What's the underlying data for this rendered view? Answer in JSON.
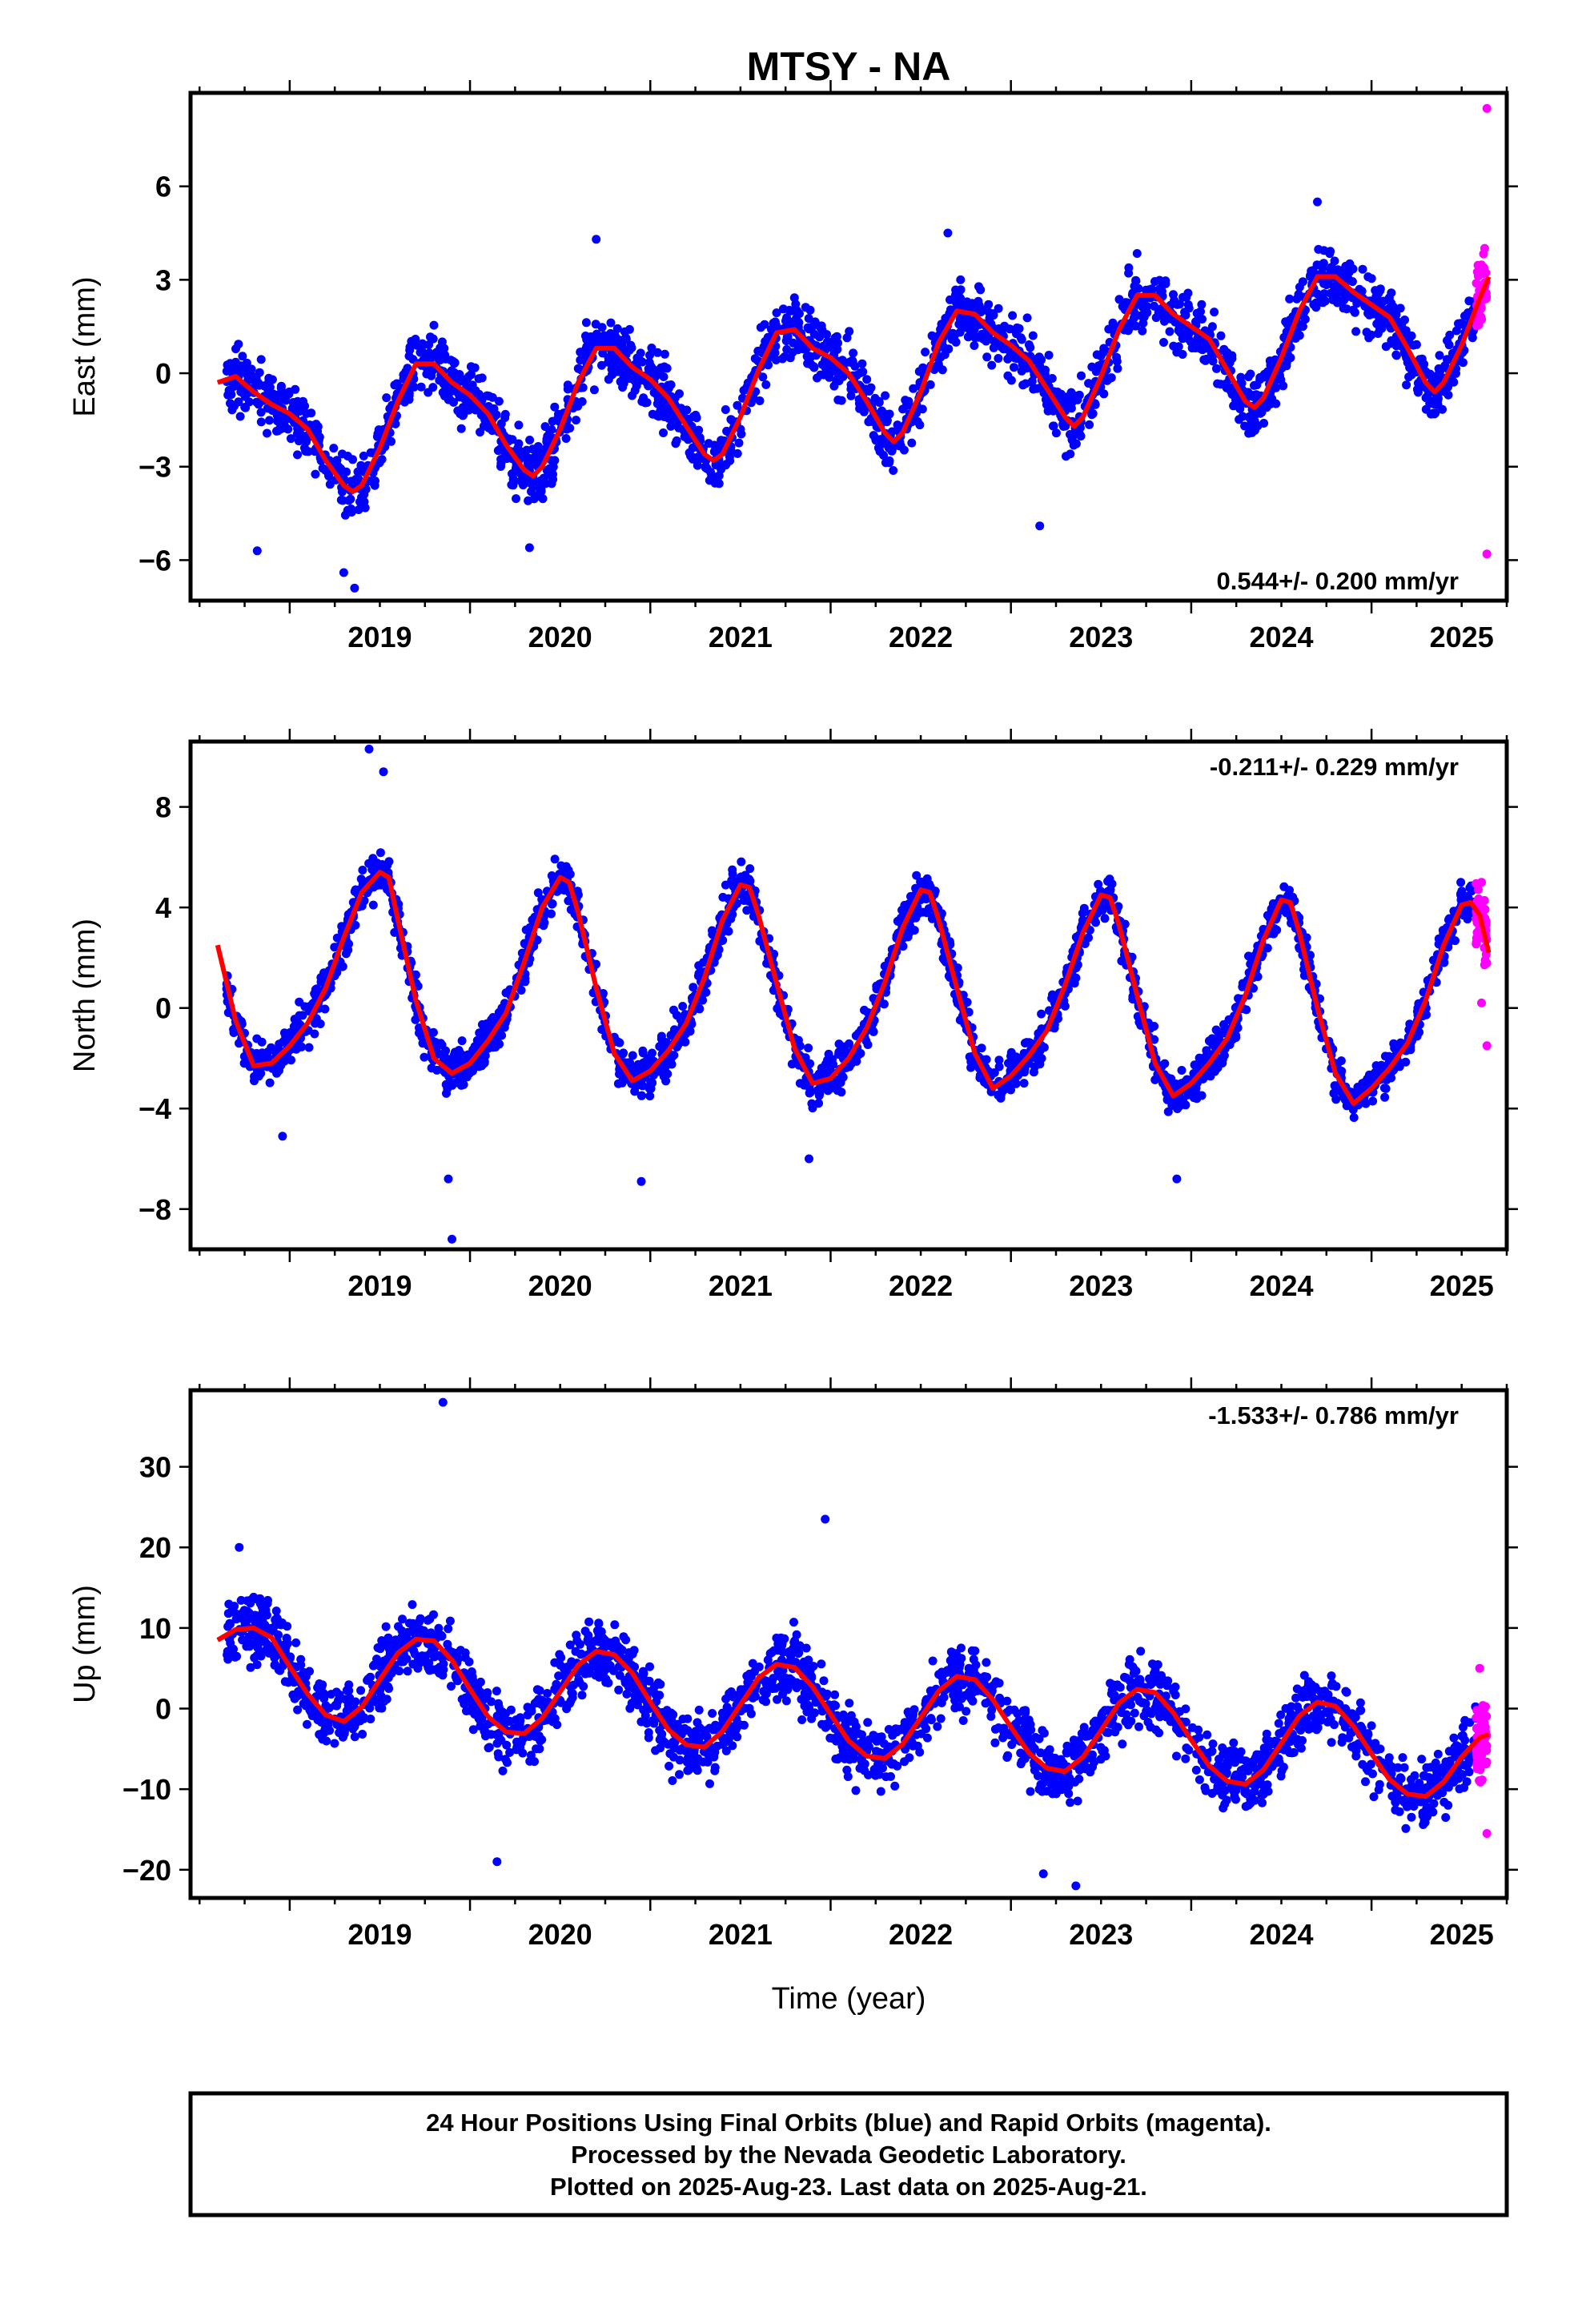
{
  "title": "MTSY - NA",
  "xlabel": "Time (year)",
  "colors": {
    "final": "#0000ff",
    "rapid": "#ff00ff",
    "model": "#ff0000"
  },
  "footer": {
    "line1": "24 Hour Positions Using Final Orbits (blue) and Rapid Orbits (magenta).",
    "line2": "Processed by the Nevada Geodetic Laboratory.",
    "line3": "Plotted on 2025-Aug-23. Last data on 2025-Aug-21."
  },
  "chart_data": [
    {
      "type": "scatter",
      "component": "east",
      "ylabel": "East (mm)",
      "rate_label": "0.544+/- 0.200 mm/yr",
      "rate_position": "bottom-right",
      "xlim": [
        2018.45,
        2025.75
      ],
      "ylim": [
        -7.3,
        9.0
      ],
      "x_ticks": [
        2019,
        2020,
        2021,
        2022,
        2023,
        2024,
        2025
      ],
      "x_tick_labels": [
        "2019",
        "2020",
        "2021",
        "2022",
        "2023",
        "2024",
        "2025"
      ],
      "y_ticks": [
        -6,
        -3,
        0,
        3,
        6
      ],
      "y_tick_labels": [
        "−6",
        "−3",
        "0",
        "3",
        "6"
      ],
      "model_curve": {
        "x": [
          2018.6,
          2018.7,
          2018.8,
          2018.9,
          2019.0,
          2019.1,
          2019.2,
          2019.3,
          2019.35,
          2019.4,
          2019.5,
          2019.6,
          2019.7,
          2019.8,
          2019.9,
          2020.0,
          2020.1,
          2020.2,
          2020.3,
          2020.35,
          2020.4,
          2020.5,
          2020.6,
          2020.7,
          2020.8,
          2020.9,
          2021.0,
          2021.1,
          2021.2,
          2021.3,
          2021.35,
          2021.4,
          2021.5,
          2021.6,
          2021.7,
          2021.8,
          2021.9,
          2022.0,
          2022.1,
          2022.2,
          2022.3,
          2022.35,
          2022.4,
          2022.5,
          2022.6,
          2022.7,
          2022.8,
          2022.9,
          2023.0,
          2023.1,
          2023.2,
          2023.3,
          2023.35,
          2023.4,
          2023.5,
          2023.6,
          2023.7,
          2023.8,
          2023.9,
          2024.0,
          2024.1,
          2024.2,
          2024.3,
          2024.35,
          2024.4,
          2024.5,
          2024.6,
          2024.7,
          2024.8,
          2024.9,
          2025.0,
          2025.1,
          2025.2,
          2025.3,
          2025.35,
          2025.4,
          2025.5,
          2025.6,
          2025.65
        ],
        "y": [
          -0.3,
          -0.1,
          -0.6,
          -1.0,
          -1.3,
          -1.8,
          -2.8,
          -3.6,
          -3.8,
          -3.6,
          -2.4,
          -0.9,
          0.3,
          0.3,
          -0.3,
          -0.7,
          -1.3,
          -2.3,
          -3.1,
          -3.3,
          -3.0,
          -1.8,
          -0.3,
          0.8,
          0.8,
          0.2,
          -0.2,
          -0.8,
          -1.7,
          -2.6,
          -2.8,
          -2.6,
          -1.4,
          0.1,
          1.3,
          1.4,
          0.8,
          0.5,
          0.0,
          -0.9,
          -1.9,
          -2.2,
          -1.9,
          -0.6,
          1.0,
          2.0,
          1.9,
          1.3,
          0.9,
          0.4,
          -0.5,
          -1.4,
          -1.7,
          -1.4,
          -0.1,
          1.4,
          2.5,
          2.5,
          1.9,
          1.5,
          1.1,
          0.1,
          -0.9,
          -1.1,
          -0.8,
          0.5,
          2.0,
          3.1,
          3.1,
          2.6,
          2.2,
          1.8,
          0.8,
          -0.3,
          -0.6,
          -0.3,
          0.9,
          2.4,
          3.1
        ]
      },
      "series": [
        {
          "name": "Final Orbits (blue)",
          "color": "#0000ff",
          "x_range": [
            2018.65,
            2025.58
          ],
          "point_count": 2300,
          "scatter_mm": 0.9,
          "outliers": [
            {
              "x": 2019.3,
              "y": -6.4
            },
            {
              "x": 2019.36,
              "y": -6.9
            },
            {
              "x": 2018.82,
              "y": -5.7
            },
            {
              "x": 2020.33,
              "y": -5.6
            },
            {
              "x": 2020.7,
              "y": 4.3
            },
            {
              "x": 2022.65,
              "y": 4.5
            },
            {
              "x": 2023.16,
              "y": -4.9
            },
            {
              "x": 2024.7,
              "y": 5.5
            }
          ]
        },
        {
          "name": "Rapid Orbits (magenta)",
          "color": "#ff00ff",
          "x_range": [
            2025.58,
            2025.64
          ],
          "point_count": 60,
          "scatter_mm": 1.0,
          "outliers": [
            {
              "x": 2025.64,
              "y": 8.5
            },
            {
              "x": 2025.64,
              "y": -5.8
            }
          ]
        }
      ]
    },
    {
      "type": "scatter",
      "component": "north",
      "ylabel": "North (mm)",
      "rate_label": "-0.211+/- 0.229 mm/yr",
      "rate_position": "top-right",
      "xlim": [
        2018.45,
        2025.75
      ],
      "ylim": [
        -9.6,
        10.6
      ],
      "x_ticks": [
        2019,
        2020,
        2021,
        2022,
        2023,
        2024,
        2025
      ],
      "x_tick_labels": [
        "2019",
        "2020",
        "2021",
        "2022",
        "2023",
        "2024",
        "2025"
      ],
      "y_ticks": [
        -8,
        -4,
        0,
        4,
        8
      ],
      "y_tick_labels": [
        "−8",
        "−4",
        "0",
        "4",
        "8"
      ],
      "model_curve": {
        "x": [
          2018.6,
          2018.7,
          2018.8,
          2018.9,
          2019.0,
          2019.1,
          2019.2,
          2019.3,
          2019.4,
          2019.5,
          2019.55,
          2019.6,
          2019.7,
          2019.8,
          2019.9,
          2020.0,
          2020.1,
          2020.2,
          2020.3,
          2020.4,
          2020.5,
          2020.55,
          2020.6,
          2020.7,
          2020.8,
          2020.9,
          2021.0,
          2021.1,
          2021.2,
          2021.3,
          2021.4,
          2021.5,
          2021.55,
          2021.6,
          2021.7,
          2021.8,
          2021.9,
          2022.0,
          2022.1,
          2022.2,
          2022.3,
          2022.4,
          2022.5,
          2022.55,
          2022.6,
          2022.7,
          2022.8,
          2022.9,
          2023.0,
          2023.1,
          2023.2,
          2023.3,
          2023.4,
          2023.5,
          2023.55,
          2023.6,
          2023.7,
          2023.8,
          2023.9,
          2024.0,
          2024.1,
          2024.2,
          2024.3,
          2024.4,
          2024.5,
          2024.55,
          2024.6,
          2024.7,
          2024.8,
          2024.9,
          2025.0,
          2025.1,
          2025.2,
          2025.3,
          2025.4,
          2025.5,
          2025.55,
          2025.6,
          2025.65
        ],
        "y": [
          2.5,
          -0.5,
          -2.3,
          -2.2,
          -1.5,
          -0.6,
          0.8,
          2.8,
          4.6,
          5.4,
          5.2,
          3.5,
          0.3,
          -2.0,
          -2.6,
          -2.2,
          -1.3,
          -0.2,
          1.8,
          4.0,
          5.2,
          5.0,
          3.8,
          0.8,
          -1.8,
          -2.9,
          -2.5,
          -1.7,
          -0.6,
          1.2,
          3.5,
          4.9,
          4.8,
          3.7,
          1.0,
          -1.6,
          -3.0,
          -2.8,
          -2.0,
          -0.8,
          1.0,
          3.2,
          4.7,
          4.6,
          3.5,
          0.8,
          -1.8,
          -3.2,
          -2.7,
          -1.9,
          -0.9,
          0.9,
          3.0,
          4.5,
          4.4,
          3.3,
          0.5,
          -2.2,
          -3.5,
          -3.0,
          -2.2,
          -1.2,
          0.5,
          2.7,
          4.3,
          4.2,
          3.0,
          0.0,
          -2.6,
          -3.8,
          -3.2,
          -2.4,
          -1.4,
          0.3,
          2.5,
          4.1,
          4.2,
          3.7,
          2.2
        ]
      },
      "series": [
        {
          "name": "Final Orbits (blue)",
          "color": "#0000ff",
          "x_range": [
            2018.65,
            2025.58
          ],
          "point_count": 2300,
          "scatter_mm": 0.8,
          "outliers": [
            {
              "x": 2019.44,
              "y": 10.3
            },
            {
              "x": 2019.52,
              "y": 9.4
            },
            {
              "x": 2019.9,
              "y": -9.2
            },
            {
              "x": 2019.88,
              "y": -6.8
            },
            {
              "x": 2020.95,
              "y": -6.9
            },
            {
              "x": 2021.88,
              "y": -6.0
            },
            {
              "x": 2023.92,
              "y": -6.8
            },
            {
              "x": 2018.96,
              "y": -5.1
            }
          ]
        },
        {
          "name": "Rapid Orbits (magenta)",
          "color": "#ff00ff",
          "x_range": [
            2025.58,
            2025.64
          ],
          "point_count": 60,
          "scatter_mm": 1.1,
          "outliers": [
            {
              "x": 2025.64,
              "y": -1.5
            },
            {
              "x": 2025.61,
              "y": 0.2
            }
          ]
        }
      ]
    },
    {
      "type": "scatter",
      "component": "up",
      "ylabel": "Up (mm)",
      "rate_label": "-1.533+/- 0.786 mm/yr",
      "rate_position": "top-right",
      "xlim": [
        2018.45,
        2025.75
      ],
      "ylim": [
        -23.5,
        39.5
      ],
      "x_ticks": [
        2019,
        2020,
        2021,
        2022,
        2023,
        2024,
        2025
      ],
      "x_tick_labels": [
        "2019",
        "2020",
        "2021",
        "2022",
        "2023",
        "2024",
        "2025"
      ],
      "y_ticks": [
        -20,
        -10,
        0,
        10,
        20,
        30
      ],
      "y_tick_labels": [
        "−20",
        "−10",
        "0",
        "10",
        "20",
        "30"
      ],
      "model_curve": {
        "x": [
          2018.6,
          2018.7,
          2018.8,
          2018.9,
          2019.0,
          2019.1,
          2019.2,
          2019.3,
          2019.4,
          2019.5,
          2019.6,
          2019.7,
          2019.8,
          2019.9,
          2020.0,
          2020.1,
          2020.2,
          2020.3,
          2020.4,
          2020.5,
          2020.6,
          2020.7,
          2020.8,
          2020.9,
          2021.0,
          2021.1,
          2021.2,
          2021.3,
          2021.4,
          2021.5,
          2021.6,
          2021.7,
          2021.8,
          2021.9,
          2022.0,
          2022.1,
          2022.2,
          2022.3,
          2022.4,
          2022.5,
          2022.6,
          2022.7,
          2022.8,
          2022.9,
          2023.0,
          2023.1,
          2023.2,
          2023.3,
          2023.4,
          2023.5,
          2023.6,
          2023.7,
          2023.8,
          2023.9,
          2024.0,
          2024.1,
          2024.2,
          2024.3,
          2024.4,
          2024.5,
          2024.6,
          2024.7,
          2024.8,
          2024.9,
          2025.0,
          2025.1,
          2025.2,
          2025.3,
          2025.4,
          2025.5,
          2025.6,
          2025.65
        ],
        "y": [
          8.5,
          9.8,
          10.0,
          8.8,
          5.2,
          1.8,
          -0.8,
          -1.6,
          0.2,
          3.6,
          6.9,
          8.6,
          8.4,
          6.0,
          2.4,
          -1.0,
          -2.9,
          -3.1,
          -1.2,
          2.1,
          5.4,
          7.1,
          6.7,
          4.4,
          0.8,
          -2.6,
          -4.5,
          -4.8,
          -2.8,
          0.5,
          3.8,
          5.5,
          5.1,
          2.7,
          -0.7,
          -4.0,
          -5.9,
          -6.2,
          -4.4,
          -1.1,
          2.2,
          4.0,
          3.6,
          1.1,
          -2.3,
          -5.5,
          -7.4,
          -7.8,
          -6.0,
          -2.7,
          0.7,
          2.4,
          2.0,
          -0.5,
          -3.9,
          -7.1,
          -9.0,
          -9.4,
          -7.6,
          -4.3,
          -0.9,
          0.8,
          0.3,
          -2.2,
          -5.6,
          -8.8,
          -10.6,
          -10.9,
          -9.1,
          -6.0,
          -3.6,
          -3.2
        ]
      },
      "series": [
        {
          "name": "Final Orbits (blue)",
          "color": "#0000ff",
          "x_range": [
            2018.65,
            2025.58
          ],
          "point_count": 2300,
          "scatter_mm": 3.8,
          "outliers": [
            {
              "x": 2019.85,
              "y": 38.0
            },
            {
              "x": 2021.97,
              "y": 23.5
            },
            {
              "x": 2023.18,
              "y": -20.5
            },
            {
              "x": 2023.36,
              "y": -22.0
            },
            {
              "x": 2020.15,
              "y": -19.0
            },
            {
              "x": 2018.72,
              "y": 20.0
            }
          ]
        },
        {
          "name": "Rapid Orbits (magenta)",
          "color": "#ff00ff",
          "x_range": [
            2025.58,
            2025.64
          ],
          "point_count": 60,
          "scatter_mm": 4.5,
          "outliers": [
            {
              "x": 2025.64,
              "y": -15.5
            },
            {
              "x": 2025.6,
              "y": 5.0
            }
          ]
        }
      ]
    }
  ]
}
